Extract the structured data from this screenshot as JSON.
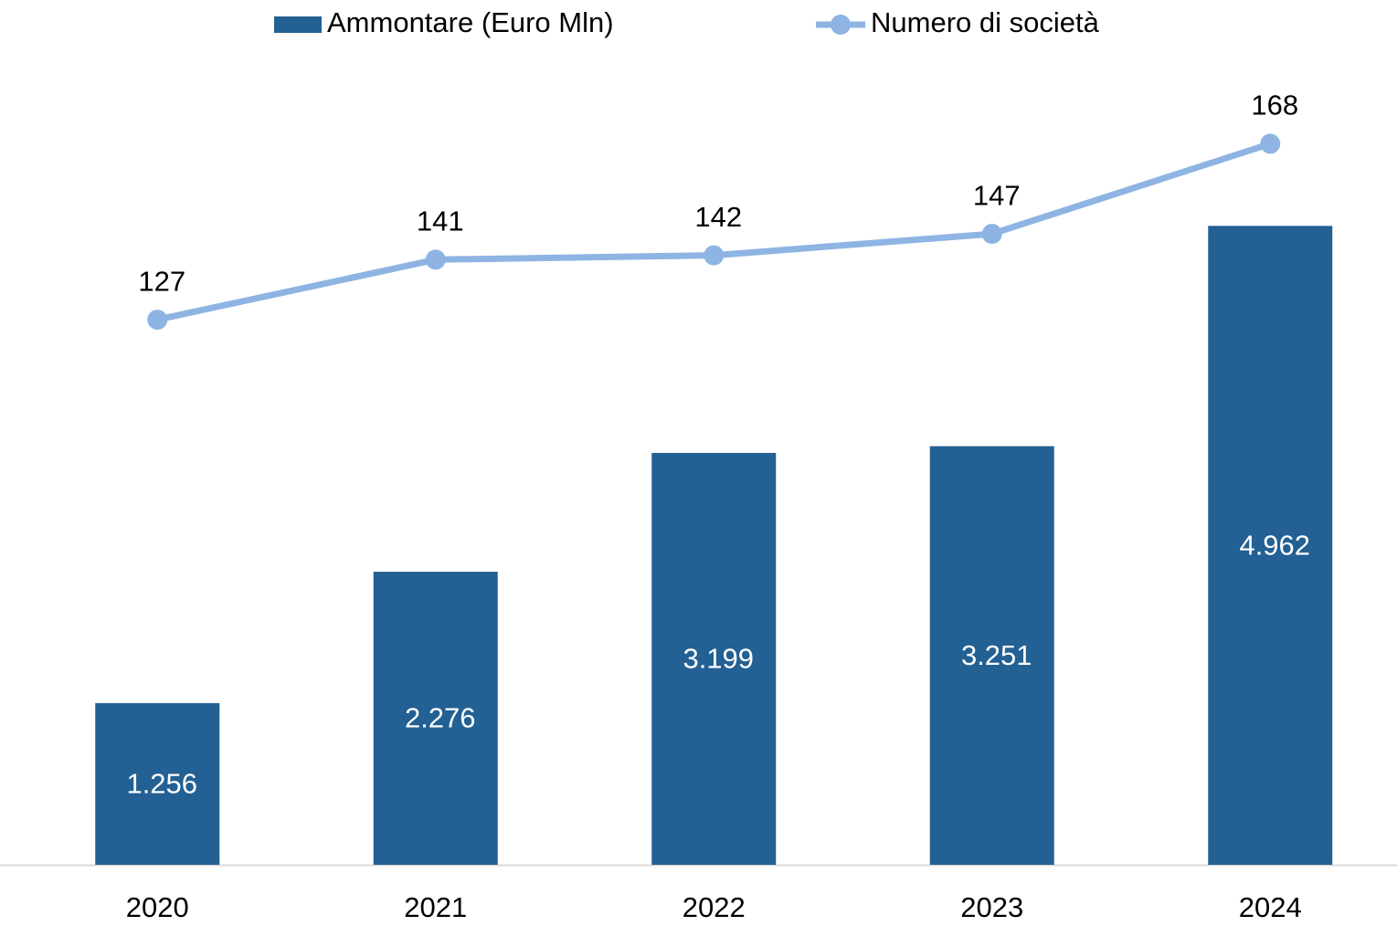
{
  "chart_data": {
    "type": "bar",
    "categories": [
      "2020",
      "2021",
      "2022",
      "2023",
      "2024"
    ],
    "series": [
      {
        "name": "Ammontare (Euro Mln)",
        "type": "bar",
        "color": "#236093",
        "values": [
          1256,
          2276,
          3199,
          3251,
          4962
        ],
        "value_labels": [
          "1.256",
          "2.276",
          "3.199",
          "3.251",
          "4.962"
        ]
      },
      {
        "name": "Numero di società",
        "type": "line",
        "axis": "y2",
        "color": "#8eb4e3",
        "values": [
          127,
          141,
          142,
          147,
          168
        ]
      }
    ],
    "ylim": [
      0,
      6000
    ],
    "y2lim": [
      0,
      180
    ],
    "legend": "top"
  }
}
